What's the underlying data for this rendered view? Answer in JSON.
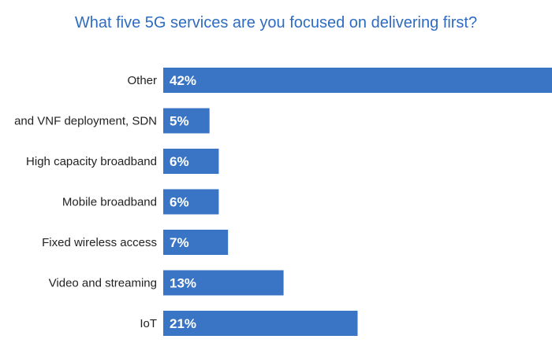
{
  "chart_data": {
    "type": "bar",
    "orientation": "horizontal",
    "title": "What five 5G services are you focused on delivering first?",
    "categories": [
      "Other",
      "and VNF deployment, SDN",
      "High capacity broadband",
      "Mobile broadband",
      "Fixed wireless access",
      "Video and streaming",
      "IoT"
    ],
    "values": [
      42,
      5,
      6,
      6,
      7,
      13,
      21
    ],
    "value_labels": [
      "42%",
      "5%",
      "6%",
      "6%",
      "7%",
      "13%",
      "21%"
    ],
    "xlabel": "",
    "ylabel": "",
    "grid": false,
    "legend": false,
    "bar_color": "#3a74c4"
  }
}
